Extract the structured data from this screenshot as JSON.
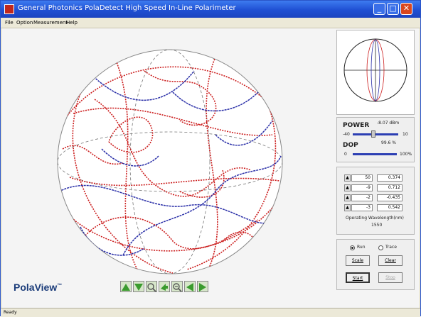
{
  "window": {
    "title": "General Photonics PolaDetect High Speed In-Line Polarimeter",
    "minimize_glyph": "_",
    "maximize_glyph": "□",
    "close_glyph": "✕"
  },
  "menu": [
    "File",
    "Option",
    "Measurement",
    "Help"
  ],
  "power": {
    "label": "POWER",
    "value": "-8.07 dBm",
    "min": "-40",
    "max": "10"
  },
  "dop": {
    "label": "DOP",
    "value": "99.6 %",
    "min": "0",
    "max": "100%",
    "level_fraction": 0.996
  },
  "stokes": {
    "rows": [
      {
        "setting": "50",
        "value": "0.374"
      },
      {
        "setting": "-9",
        "value": "0.712"
      },
      {
        "setting": "-2",
        "value": "-0.435"
      },
      {
        "setting": "-3",
        "value": "0.542"
      }
    ],
    "wavelength_label": "Operating Wavelength(nm)",
    "wavelength_value": "1550"
  },
  "controls": {
    "radio_run": "Run",
    "radio_trace": "Trace",
    "selected_radio": "Run",
    "buttons": [
      "Scale",
      "Clear",
      "Start",
      "Stop"
    ]
  },
  "brand": {
    "name": "PolaView",
    "trademark": "™"
  },
  "toolbar_icons": [
    "rotate-up-icon",
    "rotate-down-icon",
    "zoom-in-icon",
    "pan-icon",
    "zoom-out-icon",
    "rotate-left-icon",
    "rotate-right-icon"
  ],
  "status": {
    "text": "Ready"
  },
  "colors": {
    "trace_red": "#cc1f1f",
    "trace_blue": "#2a2fa8",
    "titlebar": "#1f4fd3",
    "accent_green": "#3a9b2e"
  }
}
